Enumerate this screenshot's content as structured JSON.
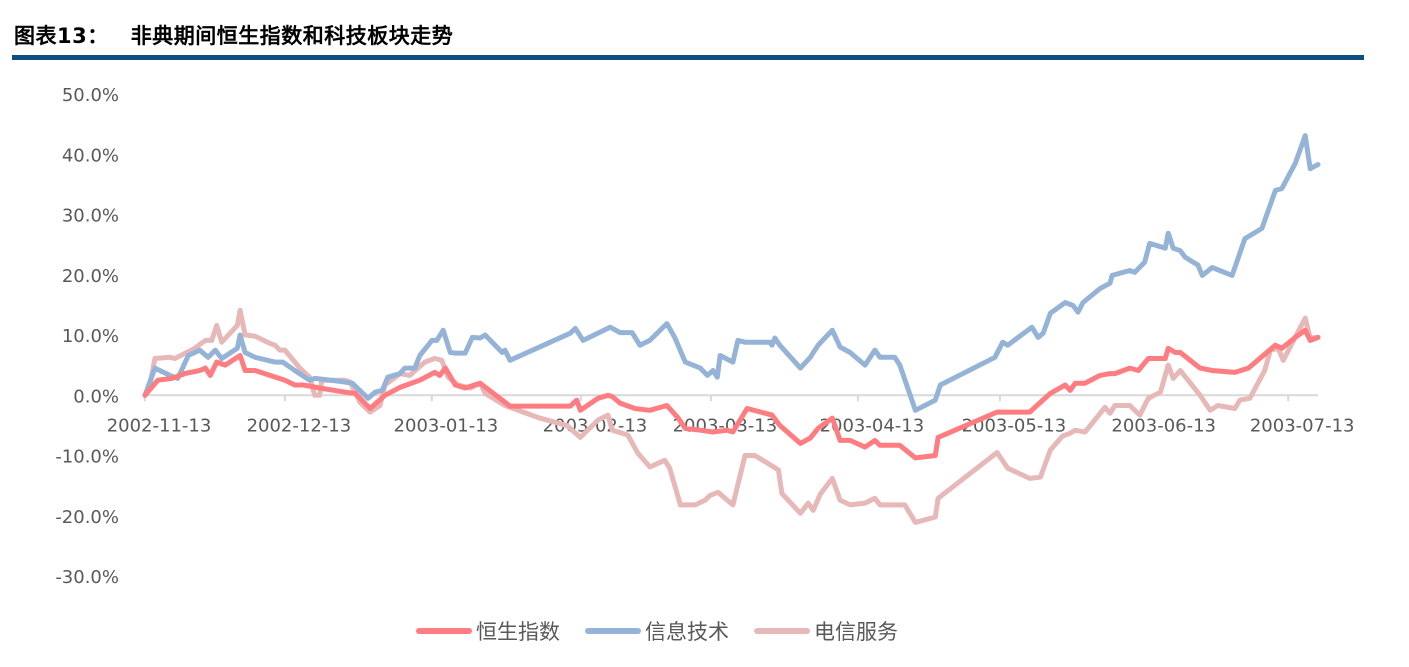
{
  "title": {
    "label": "图表13：",
    "text": "非典期间恒生指数和科技板块走势"
  },
  "chart_data": {
    "type": "line",
    "title": "非典期间恒生指数和科技板块走势",
    "xlabel": "",
    "ylabel": "",
    "x_unit": "trading-day index from 2002-11-13",
    "xlim": [
      0,
      165.2
    ],
    "ylim": [
      -30,
      50
    ],
    "y_ticks": [
      50,
      40,
      30,
      20,
      10,
      0,
      -10,
      -20,
      -30
    ],
    "y_tick_labels": [
      "50.0%",
      "40.0%",
      "30.0%",
      "20.0%",
      "10.0%",
      "0.0%",
      "-10.0%",
      "-20.0%",
      "-30.0%"
    ],
    "x_ticks": [
      0,
      19.7,
      40.4,
      61.4,
      79.7,
      100.4,
      120.4,
      141.5,
      161.0
    ],
    "x_tick_labels": [
      "2002-11-13",
      "2002-12-13",
      "2003-01-13",
      "2003-02-13",
      "2003-03-13",
      "2003-04-13",
      "2003-05-13",
      "2003-06-13",
      "2003-07-13"
    ],
    "grid": false,
    "legend_position": "bottom",
    "series": [
      {
        "name": "恒生指数",
        "color": "#ff7c80",
        "points": [
          [
            0,
            0
          ],
          [
            1.8,
            2.5
          ],
          [
            3.8,
            2.8
          ],
          [
            5.6,
            3.6
          ],
          [
            7.7,
            4.1
          ],
          [
            8.5,
            4.5
          ],
          [
            9.2,
            3.3
          ],
          [
            10.1,
            5.5
          ],
          [
            11.3,
            5
          ],
          [
            13.4,
            6.6
          ],
          [
            14.1,
            4.1
          ],
          [
            15.5,
            4.1
          ],
          [
            17.6,
            3.3
          ],
          [
            19.7,
            2.5
          ],
          [
            21.1,
            1.7
          ],
          [
            22.3,
            1.7
          ],
          [
            24.6,
            1.2
          ],
          [
            28.2,
            0.5
          ],
          [
            29.6,
            0.3
          ],
          [
            31.7,
            -2.2
          ],
          [
            33.8,
            0
          ],
          [
            35.9,
            1.3
          ],
          [
            38.7,
            2.5
          ],
          [
            40.8,
            3.8
          ],
          [
            41.5,
            3.3
          ],
          [
            42.3,
            4.5
          ],
          [
            43.7,
            1.7
          ],
          [
            45.1,
            1.2
          ],
          [
            47.2,
            2
          ],
          [
            51.4,
            -1.8
          ],
          [
            59.9,
            -1.8
          ],
          [
            60.8,
            -0.8
          ],
          [
            61.3,
            -2.5
          ],
          [
            63.8,
            -0.5
          ],
          [
            65.2,
            0
          ],
          [
            65.8,
            -0.2
          ],
          [
            66.9,
            -1.3
          ],
          [
            69.0,
            -2.2
          ],
          [
            71.1,
            -2.5
          ],
          [
            73.5,
            -1.7
          ],
          [
            75.1,
            -3.8
          ],
          [
            76.1,
            -5.5
          ],
          [
            78.2,
            -5.8
          ],
          [
            80.0,
            -6.1
          ],
          [
            82.0,
            -5.8
          ],
          [
            82.8,
            -6.1
          ],
          [
            84.8,
            -2.2
          ],
          [
            88.3,
            -3.3
          ],
          [
            89.4,
            -5
          ],
          [
            92.3,
            -8
          ],
          [
            93.7,
            -7.1
          ],
          [
            94.8,
            -5.5
          ],
          [
            96.8,
            -3.8
          ],
          [
            97.9,
            -7.5
          ],
          [
            99.3,
            -7.5
          ],
          [
            101.4,
            -8.6
          ],
          [
            102.8,
            -7.5
          ],
          [
            103.5,
            -8.3
          ],
          [
            106.3,
            -8.3
          ],
          [
            108.5,
            -10.4
          ],
          [
            111.3,
            -10
          ],
          [
            111.7,
            -7
          ],
          [
            120.0,
            -2.8
          ],
          [
            121.8,
            -2.8
          ],
          [
            124.6,
            -2.8
          ],
          [
            127.5,
            0.3
          ],
          [
            129.6,
            1.7
          ],
          [
            130.3,
            0.8
          ],
          [
            131.0,
            2
          ],
          [
            132.4,
            2
          ],
          [
            134.5,
            3.3
          ],
          [
            135.9,
            3.6
          ],
          [
            136.6,
            3.6
          ],
          [
            138.7,
            4.5
          ],
          [
            139.9,
            4.1
          ],
          [
            141.3,
            6.1
          ],
          [
            143.7,
            6.1
          ],
          [
            144.1,
            7.8
          ],
          [
            145.1,
            7.1
          ],
          [
            145.8,
            7.1
          ],
          [
            148.6,
            4.5
          ],
          [
            150.3,
            4.1
          ],
          [
            153.5,
            3.8
          ],
          [
            155.4,
            4.5
          ],
          [
            159.2,
            8.3
          ],
          [
            160.1,
            7.8
          ],
          [
            162.0,
            9.6
          ],
          [
            163.4,
            10.8
          ],
          [
            164.1,
            9.1
          ],
          [
            165.2,
            9.6
          ]
        ]
      },
      {
        "name": "信息技术",
        "color": "#95b3d7",
        "points": [
          [
            0,
            0
          ],
          [
            1.4,
            4.5
          ],
          [
            3.5,
            3.3
          ],
          [
            4.6,
            2.8
          ],
          [
            6.1,
            6.6
          ],
          [
            7.7,
            7.5
          ],
          [
            8.9,
            6.3
          ],
          [
            9.9,
            7.5
          ],
          [
            10.8,
            6.1
          ],
          [
            13.0,
            7.8
          ],
          [
            13.4,
            10
          ],
          [
            14.1,
            7.1
          ],
          [
            15.5,
            6.3
          ],
          [
            18.3,
            5.5
          ],
          [
            19.4,
            5.5
          ],
          [
            21.1,
            4.1
          ],
          [
            23.2,
            2.5
          ],
          [
            23.9,
            2.8
          ],
          [
            27.5,
            2.3
          ],
          [
            29.2,
            2
          ],
          [
            31.4,
            -0.5
          ],
          [
            32.4,
            0.5
          ],
          [
            33.4,
            0.8
          ],
          [
            34.2,
            3
          ],
          [
            35.9,
            3.6
          ],
          [
            36.6,
            4.5
          ],
          [
            38.0,
            4.5
          ],
          [
            38.7,
            6.6
          ],
          [
            40.4,
            9.1
          ],
          [
            41.1,
            9.1
          ],
          [
            42.0,
            10.8
          ],
          [
            43.0,
            7.1
          ],
          [
            43.7,
            7
          ],
          [
            45.1,
            7
          ],
          [
            46.1,
            9.6
          ],
          [
            47.2,
            9.5
          ],
          [
            47.9,
            10
          ],
          [
            50.3,
            7.1
          ],
          [
            50.7,
            7.5
          ],
          [
            51.4,
            5.8
          ],
          [
            59.9,
            10.3
          ],
          [
            60.6,
            11.1
          ],
          [
            61.7,
            9.1
          ],
          [
            65.5,
            11.3
          ],
          [
            66.9,
            10.4
          ],
          [
            68.6,
            10.4
          ],
          [
            69.7,
            8.3
          ],
          [
            71.1,
            9.1
          ],
          [
            73.5,
            11.9
          ],
          [
            74.6,
            9.6
          ],
          [
            76.1,
            5.5
          ],
          [
            78.2,
            4.5
          ],
          [
            79.2,
            3.3
          ],
          [
            80.0,
            4.1
          ],
          [
            80.6,
            3
          ],
          [
            81.0,
            6.6
          ],
          [
            82.8,
            5.5
          ],
          [
            83.5,
            9.1
          ],
          [
            84.5,
            8.8
          ],
          [
            88.0,
            8.8
          ],
          [
            88.3,
            8.3
          ],
          [
            88.7,
            9.5
          ],
          [
            89.4,
            8.3
          ],
          [
            92.3,
            4.5
          ],
          [
            93.7,
            6.3
          ],
          [
            94.8,
            8.3
          ],
          [
            96.8,
            10.8
          ],
          [
            97.9,
            8
          ],
          [
            99.3,
            7.1
          ],
          [
            101.4,
            5
          ],
          [
            102.8,
            7.5
          ],
          [
            103.5,
            6.3
          ],
          [
            105.6,
            6.3
          ],
          [
            106.3,
            5
          ],
          [
            108.5,
            -2.5
          ],
          [
            111.3,
            -0.8
          ],
          [
            112.0,
            1.7
          ],
          [
            119.7,
            6.3
          ],
          [
            120.8,
            8.8
          ],
          [
            121.5,
            8.3
          ],
          [
            124.9,
            11.3
          ],
          [
            125.8,
            9.6
          ],
          [
            126.5,
            10.3
          ],
          [
            127.5,
            13.6
          ],
          [
            129.6,
            15.4
          ],
          [
            130.7,
            14.9
          ],
          [
            131.4,
            13.8
          ],
          [
            132.1,
            15.4
          ],
          [
            134.5,
            17.7
          ],
          [
            135.9,
            18.6
          ],
          [
            136.2,
            19.9
          ],
          [
            138.7,
            20.7
          ],
          [
            139.4,
            20.4
          ],
          [
            140.8,
            22.1
          ],
          [
            141.5,
            25.2
          ],
          [
            143.7,
            24.4
          ],
          [
            144.1,
            26.9
          ],
          [
            144.8,
            24.4
          ],
          [
            145.8,
            24
          ],
          [
            146.5,
            22.9
          ],
          [
            148.3,
            21.6
          ],
          [
            148.9,
            19.9
          ],
          [
            150.3,
            21.2
          ],
          [
            153.1,
            19.9
          ],
          [
            154.9,
            26
          ],
          [
            157.3,
            27.7
          ],
          [
            159.2,
            34
          ],
          [
            160.1,
            34.3
          ],
          [
            162.0,
            38.5
          ],
          [
            163.4,
            43.1
          ],
          [
            164.1,
            37.6
          ],
          [
            165.2,
            38.3
          ]
        ]
      },
      {
        "name": "电信服务",
        "color": "#e6b9b8",
        "points": [
          [
            0,
            0
          ],
          [
            0.7,
            1.7
          ],
          [
            1.4,
            6.1
          ],
          [
            3.5,
            6.3
          ],
          [
            4.2,
            6.1
          ],
          [
            7.0,
            7.8
          ],
          [
            8.5,
            9.1
          ],
          [
            9.4,
            9.1
          ],
          [
            10.1,
            11.6
          ],
          [
            10.8,
            8.8
          ],
          [
            13.0,
            11.6
          ],
          [
            13.4,
            14.1
          ],
          [
            14.1,
            10
          ],
          [
            15.5,
            9.8
          ],
          [
            17.6,
            8.6
          ],
          [
            18.3,
            8.3
          ],
          [
            19.0,
            7.5
          ],
          [
            19.7,
            7.5
          ],
          [
            21.8,
            4.5
          ],
          [
            23.2,
            3
          ],
          [
            23.9,
            0
          ],
          [
            24.6,
            0
          ],
          [
            24.9,
            2.5
          ],
          [
            28.2,
            2.5
          ],
          [
            28.9,
            2.2
          ],
          [
            30.3,
            -1.2
          ],
          [
            31.7,
            -2.8
          ],
          [
            33.1,
            -1.7
          ],
          [
            33.8,
            1.7
          ],
          [
            35.9,
            3.6
          ],
          [
            37.3,
            3.3
          ],
          [
            39.4,
            5.5
          ],
          [
            40.8,
            6.1
          ],
          [
            41.8,
            5.8
          ],
          [
            42.7,
            3
          ],
          [
            44.1,
            1.7
          ],
          [
            45.8,
            1.2
          ],
          [
            47.2,
            2
          ],
          [
            47.9,
            0.3
          ],
          [
            50.7,
            -1.7
          ],
          [
            55.6,
            -3.8
          ],
          [
            59.4,
            -5
          ],
          [
            61.3,
            -7
          ],
          [
            63.8,
            -4.1
          ],
          [
            65.2,
            -3.3
          ],
          [
            65.8,
            -5.8
          ],
          [
            68.0,
            -6.6
          ],
          [
            69.4,
            -9.6
          ],
          [
            71.1,
            -11.9
          ],
          [
            73.2,
            -10.8
          ],
          [
            73.9,
            -12.1
          ],
          [
            75.4,
            -18.2
          ],
          [
            77.5,
            -18.2
          ],
          [
            78.9,
            -17.4
          ],
          [
            79.6,
            -16.6
          ],
          [
            80.7,
            -16.1
          ],
          [
            81.7,
            -17.1
          ],
          [
            82.8,
            -18.2
          ],
          [
            84.5,
            -10
          ],
          [
            85.9,
            -10
          ],
          [
            87.7,
            -11.3
          ],
          [
            89.2,
            -12.4
          ],
          [
            89.7,
            -16.3
          ],
          [
            92.3,
            -19.6
          ],
          [
            93.4,
            -17.9
          ],
          [
            94.1,
            -19.1
          ],
          [
            95.1,
            -16.4
          ],
          [
            96.8,
            -13.8
          ],
          [
            97.9,
            -17.4
          ],
          [
            99.3,
            -18.2
          ],
          [
            101.4,
            -17.9
          ],
          [
            102.8,
            -17.1
          ],
          [
            103.5,
            -18.2
          ],
          [
            107.0,
            -18.2
          ],
          [
            108.5,
            -21.1
          ],
          [
            111.3,
            -20.2
          ],
          [
            111.7,
            -17.1
          ],
          [
            120.0,
            -9.5
          ],
          [
            121.5,
            -12.1
          ],
          [
            124.6,
            -13.8
          ],
          [
            126.1,
            -13.6
          ],
          [
            127.5,
            -9.1
          ],
          [
            129.2,
            -6.8
          ],
          [
            130.3,
            -6.3
          ],
          [
            131.0,
            -5.8
          ],
          [
            132.4,
            -6.1
          ],
          [
            135.2,
            -2
          ],
          [
            135.9,
            -3
          ],
          [
            136.6,
            -1.7
          ],
          [
            138.7,
            -1.7
          ],
          [
            140.1,
            -3.3
          ],
          [
            141.3,
            -0.5
          ],
          [
            143.0,
            0.5
          ],
          [
            144.1,
            5
          ],
          [
            144.8,
            2.8
          ],
          [
            145.8,
            4.1
          ],
          [
            148.6,
            0
          ],
          [
            150.0,
            -2.5
          ],
          [
            151.1,
            -1.7
          ],
          [
            153.5,
            -2.2
          ],
          [
            154.2,
            -0.8
          ],
          [
            155.6,
            -0.5
          ],
          [
            157.7,
            4.1
          ],
          [
            158.5,
            7.5
          ],
          [
            159.6,
            7.8
          ],
          [
            160.3,
            5.8
          ],
          [
            163.4,
            12.8
          ],
          [
            164.1,
            9.5
          ],
          [
            165.2,
            9.6
          ]
        ]
      }
    ]
  }
}
